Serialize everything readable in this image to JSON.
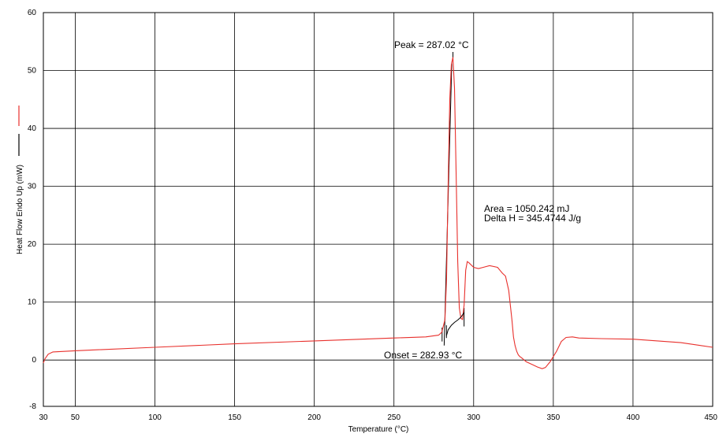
{
  "chart_data": {
    "type": "line",
    "xlabel": "Temperature (°C)",
    "ylabel": "Heat Flow Endo Up (mW)",
    "xlim": [
      30,
      450
    ],
    "ylim": [
      -8,
      60
    ],
    "x_ticks": [
      30,
      50,
      100,
      150,
      200,
      250,
      300,
      350,
      400,
      450
    ],
    "y_ticks": [
      -8,
      0,
      10,
      20,
      30,
      40,
      50,
      60
    ],
    "grid": true,
    "legend": "left",
    "colors": {
      "series": "#e8302c",
      "baseline": "#000000",
      "grid": "#000000"
    },
    "series": [
      {
        "color": "#e8302c",
        "x": [
          30,
          31,
          33,
          36,
          50,
          100,
          150,
          200,
          250,
          270,
          278,
          280,
          282,
          283,
          284,
          285,
          286,
          287.02,
          288,
          289,
          290,
          291,
          292,
          293,
          294,
          295,
          296,
          297,
          300,
          303,
          306,
          310,
          315,
          318,
          320,
          322,
          324,
          325,
          326,
          327,
          328,
          329,
          330,
          333,
          337,
          340,
          343,
          345,
          348,
          352,
          355,
          358,
          362,
          366,
          380,
          400,
          430,
          450
        ],
        "y": [
          -0.5,
          0.2,
          1.0,
          1.4,
          1.6,
          2.2,
          2.8,
          3.3,
          3.8,
          4.0,
          4.3,
          4.8,
          7.0,
          14.0,
          30.0,
          45.0,
          51.0,
          52.3,
          47.0,
          32.0,
          17.0,
          9.0,
          7.2,
          7.0,
          9.5,
          15.5,
          17.0,
          16.8,
          16.0,
          15.8,
          16.0,
          16.3,
          16.0,
          15.0,
          14.5,
          12.0,
          7.0,
          4.0,
          2.5,
          1.5,
          0.9,
          0.6,
          0.4,
          -0.3,
          -0.8,
          -1.2,
          -1.5,
          -1.3,
          -0.3,
          1.5,
          3.2,
          3.9,
          4.0,
          3.8,
          3.7,
          3.6,
          3.0,
          2.2
        ]
      },
      {
        "color": "#000000",
        "x": [
          282.93,
          284,
          286,
          288,
          290,
          292,
          294
        ],
        "y": [
          4.2,
          5.2,
          6.0,
          6.5,
          6.9,
          7.4,
          8.2
        ]
      }
    ],
    "annotations": {
      "peak_label": "Peak = 287.02 °C",
      "onset_label": "Onset = 282.93 °C",
      "area_label": "Area = 1050.242 mJ",
      "deltah_label": "Delta H = 345.4744 J/g"
    },
    "peak": {
      "x": 287.02,
      "y_top": 53.2
    },
    "onset_x": 282.93
  }
}
